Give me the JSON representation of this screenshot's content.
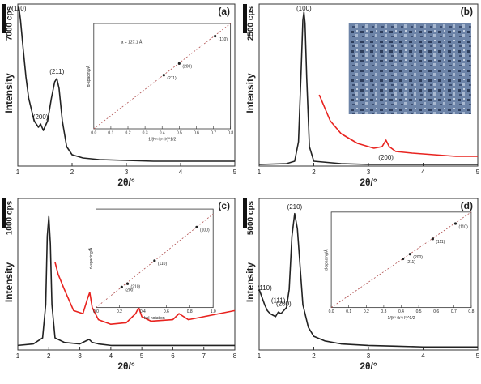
{
  "chart_data": [
    {
      "type": "line",
      "panel_label": "(a)",
      "y_label": "Intensity",
      "x_label": "2θ/°",
      "scale_bar": "7000 cps",
      "xlim": [
        1,
        5
      ],
      "xticks": [
        1,
        2,
        3,
        4,
        5
      ],
      "ylim": [
        0,
        100
      ],
      "series": [
        {
          "color": "#222222",
          "x": [
            1.0,
            1.02,
            1.05,
            1.1,
            1.15,
            1.2,
            1.3,
            1.38,
            1.42,
            1.47,
            1.55,
            1.62,
            1.68,
            1.72,
            1.76,
            1.82,
            1.9,
            2.0,
            2.2,
            2.5,
            3,
            3.5,
            4,
            4.5,
            5
          ],
          "values": [
            96,
            98,
            90,
            72,
            55,
            42,
            28,
            24,
            26,
            22,
            28,
            42,
            52,
            54,
            48,
            28,
            12,
            7,
            5,
            4,
            3.5,
            3,
            3,
            3,
            3
          ]
        }
      ],
      "annotations": [
        {
          "text": "(110)",
          "x": 1.02
        },
        {
          "text": "(200)",
          "x": 1.42
        },
        {
          "text": "(211)",
          "x": 1.72
        }
      ],
      "inset": {
        "type": "scatter",
        "x_label": "1/(h²+k²+l²)^1/2",
        "y_label": "d-spacing/Å",
        "annotation": "a = 127.1 Å",
        "xlim": [
          0,
          0.8
        ],
        "ylim": [
          0,
          100
        ],
        "xticks": [
          {
            "value": 0,
            "label": "0.0"
          },
          {
            "value": 0.1,
            "label": "0.1"
          },
          {
            "value": 0.2,
            "label": "0.2"
          },
          {
            "value": 0.3,
            "label": "0.3"
          },
          {
            "value": 0.4,
            "label": "0.4"
          },
          {
            "value": 0.5,
            "label": "0.5"
          },
          {
            "value": 0.6,
            "label": "0.6"
          },
          {
            "value": 0.7,
            "label": "0.7"
          },
          {
            "value": 0.8,
            "label": "0.8"
          }
        ],
        "series": [
          {
            "x": [
              0.41,
              0.5,
              0.71
            ],
            "values": [
              51,
              62,
              88
            ],
            "labels": [
              "(211)",
              "(200)",
              "(110)"
            ],
            "color": "#222222"
          }
        ],
        "fit": {
          "x": [
            0,
            0.8
          ],
          "values": [
            0,
            100
          ],
          "color": "#b05050"
        }
      }
    },
    {
      "type": "line",
      "panel_label": "(b)",
      "y_label": "Intensity",
      "x_label": "2θ/°",
      "scale_bar": "2500 cps",
      "xlim": [
        1,
        5
      ],
      "xticks": [
        1,
        2,
        3,
        4,
        5
      ],
      "ylim": [
        0,
        100
      ],
      "series": [
        {
          "color": "#222222",
          "x": [
            1,
            1.5,
            1.65,
            1.72,
            1.77,
            1.8,
            1.82,
            1.84,
            1.87,
            1.92,
            2,
            2.5,
            3,
            3.5,
            4,
            5
          ],
          "values": [
            1,
            1.5,
            3,
            15,
            60,
            90,
            95,
            88,
            55,
            12,
            3,
            1.5,
            1,
            1,
            1,
            1
          ]
        },
        {
          "color": "#e8231f",
          "x": [
            2.1,
            2.2,
            2.3,
            2.5,
            2.8,
            3.1,
            3.25,
            3.32,
            3.38,
            3.5,
            3.8,
            4.2,
            4.6,
            5
          ],
          "values": [
            44,
            36,
            28,
            20,
            14,
            11,
            12,
            16,
            12,
            9,
            8,
            7,
            6,
            6
          ]
        }
      ],
      "annotations": [
        {
          "text": "(100)",
          "x": 1.82
        },
        {
          "text": "(200)",
          "x": 3.32
        }
      ]
    },
    {
      "type": "line",
      "panel_label": "(c)",
      "y_label": "Intensity",
      "x_label": "2θ/°",
      "scale_bar": "1000 cps",
      "xlim": [
        1,
        8
      ],
      "xticks": [
        1,
        2,
        3,
        4,
        5,
        6,
        7,
        8
      ],
      "ylim": [
        0,
        100
      ],
      "series": [
        {
          "color": "#222222",
          "x": [
            1,
            1.5,
            1.8,
            1.9,
            1.95,
            2,
            2.05,
            2.1,
            2.2,
            2.5,
            3,
            3.2,
            3.3,
            3.4,
            3.6,
            4,
            5,
            6,
            7,
            8
          ],
          "values": [
            3,
            4,
            8,
            30,
            75,
            88,
            70,
            30,
            8,
            5,
            4,
            6,
            7,
            5,
            4,
            3,
            3,
            3,
            3,
            3
          ]
        },
        {
          "color": "#e8231f",
          "x": [
            2.2,
            2.3,
            2.5,
            2.8,
            3.1,
            3.25,
            3.32,
            3.4,
            3.6,
            4,
            4.5,
            4.8,
            4.9,
            5,
            5.3,
            6,
            6.2,
            6.5,
            7,
            7.5,
            8
          ],
          "values": [
            58,
            50,
            40,
            26,
            24,
            34,
            38,
            28,
            20,
            17,
            18,
            24,
            28,
            22,
            19,
            20,
            24,
            20,
            22,
            24,
            26
          ]
        }
      ],
      "annotations": [],
      "inset": {
        "type": "scatter",
        "x_label": "hkl notation",
        "y_label": "d-spacing/Å",
        "xlim": [
          0,
          1
        ],
        "ylim": [
          0,
          120
        ],
        "xticks": [
          {
            "value": 0,
            "label": "0.0"
          },
          {
            "value": 0.2,
            "label": "0.2"
          },
          {
            "value": 0.4,
            "label": "0.4"
          },
          {
            "value": 0.6,
            "label": "0.6"
          },
          {
            "value": 0.8,
            "label": "0.8"
          },
          {
            "value": 1,
            "label": "1.0"
          }
        ],
        "series": [
          {
            "x": [
              0.22,
              0.27,
              0.5,
              0.86
            ],
            "values": [
              25,
              29,
              57,
              98
            ],
            "labels": [
              "(200)",
              "(210)",
              "(110)",
              "(100)"
            ],
            "color": "#222222"
          }
        ],
        "fit": {
          "x": [
            0,
            1
          ],
          "values": [
            0,
            114
          ],
          "color": "#b05050"
        }
      }
    },
    {
      "type": "line",
      "panel_label": "(d)",
      "y_label": "Intensity",
      "x_label": "2θ/°",
      "scale_bar": "5000 cps",
      "xlim": [
        1,
        5
      ],
      "xticks": [
        1,
        2,
        3,
        4,
        5
      ],
      "ylim": [
        0,
        100
      ],
      "series": [
        {
          "color": "#222222",
          "x": [
            1,
            1.05,
            1.1,
            1.15,
            1.2,
            1.3,
            1.35,
            1.4,
            1.45,
            1.5,
            1.55,
            1.6,
            1.65,
            1.7,
            1.75,
            1.8,
            1.9,
            2,
            2.2,
            2.5,
            3,
            3.5,
            4,
            4.5,
            5
          ],
          "values": [
            40,
            35,
            30,
            26,
            24,
            22,
            25,
            24,
            26,
            28,
            40,
            75,
            90,
            80,
            55,
            30,
            15,
            9,
            6,
            4,
            3,
            2.5,
            2,
            2,
            2
          ]
        }
      ],
      "annotations": [
        {
          "text": "(110)",
          "x": 1.1
        },
        {
          "text": "(111)",
          "x": 1.35
        },
        {
          "text": "(200)",
          "x": 1.45
        },
        {
          "text": "(210)",
          "x": 1.65
        }
      ],
      "inset": {
        "type": "scatter",
        "x_label": "1/(h²+k²+l²)^1/2",
        "y_label": "d-spacing/Å",
        "xlim": [
          0,
          0.8
        ],
        "ylim": [
          0,
          100
        ],
        "xticks": [
          {
            "value": 0,
            "label": "0.0"
          },
          {
            "value": 0.1,
            "label": "0.1"
          },
          {
            "value": 0.2,
            "label": "0.2"
          },
          {
            "value": 0.3,
            "label": "0.3"
          },
          {
            "value": 0.4,
            "label": "0.4"
          },
          {
            "value": 0.5,
            "label": "0.5"
          },
          {
            "value": 0.6,
            "label": "0.6"
          },
          {
            "value": 0.7,
            "label": "0.7"
          },
          {
            "value": 0.8,
            "label": "0.8"
          }
        ],
        "series": [
          {
            "x": [
              0.41,
              0.45,
              0.58,
              0.71
            ],
            "values": [
              51,
              56,
              72,
              88
            ],
            "labels": [
              "(211)",
              "(200)",
              "(111)",
              "(110)"
            ],
            "color": "#222222"
          }
        ],
        "fit": {
          "x": [
            0,
            0.8
          ],
          "values": [
            0,
            100
          ],
          "color": "#b05050"
        }
      }
    }
  ]
}
